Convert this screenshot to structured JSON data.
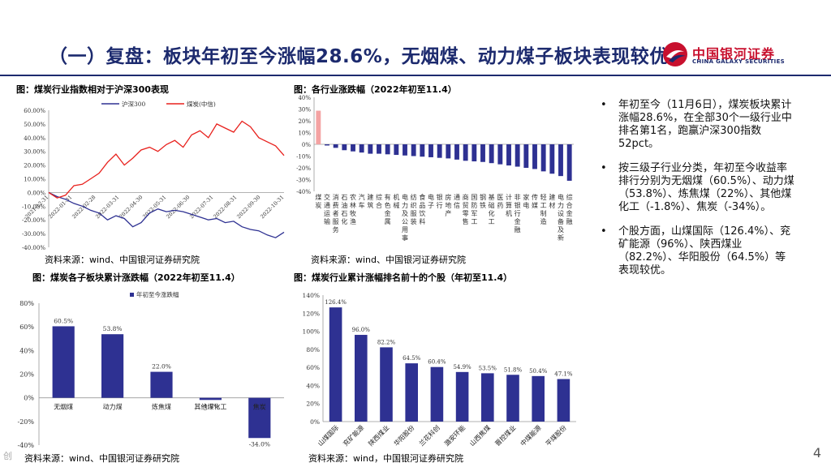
{
  "slide": {
    "title": "（一）复盘：板块年初至今涨幅28.6%，无烟煤、动力煤子板块表现较优",
    "page_number": "4",
    "footer_mark": "创"
  },
  "logo": {
    "cn": "中国银河证券",
    "en": "CHINA GALAXY SECURITIES",
    "colors": {
      "red": "#c8102e",
      "navy": "#1c2a6e"
    }
  },
  "bullets": [
    "年初至今（11月6日），煤炭板块累计涨幅28.6%，在全部30个一级行业中排名第1名，跑赢沪深300指数52pct。",
    "按三级子行业分类，年初至今收益率排行分别为无烟煤（60.5%）、动力煤（53.8%）、炼焦煤（22%）、其他煤化工（-1.8%）、焦炭（-34%）。",
    "个股方面，山煤国际（126.4%）、兖矿能源（96%）、陕西煤业（82.2%）、华阳股份（64.5%）等表现较优。"
  ],
  "charts": {
    "c1": {
      "title": "图：煤炭行业指数相对于沪深300表现",
      "source": "资料来源：wind、中国银河证券研究院"
    },
    "c2": {
      "title": "图：各行业涨跌幅（2022年初至11.4）",
      "source": "资料来源：wind、中国银河证券研究院"
    },
    "c3": {
      "title": "图：煤炭各子板块累计涨跌幅（2022年初至11.4）",
      "source": "资料来源：wind、中国银河证券研究院"
    },
    "c4": {
      "title": "图：煤炭行业累计涨幅排名前十的个股（年初至11.4）",
      "source": "资料来源：wind，中国银河证券研究院"
    }
  },
  "chart_data": [
    {
      "type": "line",
      "y_ticks": [
        "60.00%",
        "50.00%",
        "40.00%",
        "30.00%",
        "20.00%",
        "10.00%",
        "0.00%",
        "-10.00%",
        "-20.00%",
        "-30.00%",
        "-40.00%"
      ],
      "ylim": [
        -40,
        60
      ],
      "x_ticks": [
        "2021-12-31",
        "2022-01-31",
        "2022-02-28",
        "2022-03-31",
        "2022-04-30",
        "2022-05-31",
        "2022-06-30",
        "2022-07-31",
        "2022-08-31",
        "2022-09-30",
        "2022-10-31"
      ],
      "series": [
        {
          "name": "沪深300",
          "color": "#2e3192",
          "values": [
            0,
            -3,
            -5,
            -8,
            -10,
            -13,
            -15,
            -20,
            -17,
            -19,
            -25,
            -22,
            -15,
            -12,
            -14,
            -13,
            -14,
            -16,
            -18,
            -20,
            -19,
            -22,
            -21,
            -25,
            -27,
            -28,
            -31,
            -33,
            -29
          ]
        },
        {
          "name": "煤炭(中信)",
          "color": "#e8211d",
          "values": [
            0,
            -4,
            -2,
            5,
            6,
            10,
            14,
            22,
            28,
            20,
            25,
            31,
            33,
            30,
            35,
            38,
            33,
            42,
            45,
            40,
            50,
            47,
            44,
            52,
            48,
            40,
            37,
            34,
            27
          ]
        }
      ]
    },
    {
      "type": "bar",
      "y_ticks": [
        "40%",
        "30%",
        "20%",
        "10%",
        "0%",
        "-10%",
        "-20%",
        "-30%",
        "-40%"
      ],
      "ylim": [
        -40,
        40
      ],
      "categories": [
        "煤炭",
        "交通运输",
        "消费者服务",
        "石油石化",
        "农林牧渔",
        "汽车",
        "建筑",
        "综合",
        "有色金属",
        "机械",
        "电力及公用事业",
        "纺织服装",
        "食品饮料",
        "电子",
        "银行",
        "房地产",
        "通信",
        "商贸零售",
        "国防军工",
        "钢铁",
        "基础化工",
        "医药",
        "计算机",
        "非银行金融",
        "家电",
        "传媒",
        "轻工制造",
        "建材",
        "电力设备及新能源",
        "综合金融"
      ],
      "values": [
        28.6,
        -1,
        -3,
        -5,
        -6,
        -7,
        -8,
        -8,
        -8.5,
        -9,
        -9.5,
        -10,
        -10.5,
        -11,
        -11.5,
        -12,
        -13,
        -14,
        -14.5,
        -15,
        -16,
        -17,
        -18,
        -19,
        -20,
        -21,
        -23,
        -25,
        -27,
        -31
      ]
    },
    {
      "type": "bar",
      "legend": "年初至今涨跌幅",
      "y_ticks": [
        "80%",
        "60%",
        "40%",
        "20%",
        "0%",
        "-20%",
        "-40%"
      ],
      "ylim": [
        -40,
        80
      ],
      "categories": [
        "无烟煤",
        "动力煤",
        "炼焦煤",
        "其他煤化工",
        "焦炭"
      ],
      "values": [
        60.5,
        53.8,
        22.0,
        -1.8,
        -34.0
      ],
      "labels": [
        "60.5%",
        "53.8%",
        "22.0%",
        "-1.8%",
        "-34.0%"
      ]
    },
    {
      "type": "bar",
      "y_ticks": [
        "140%",
        "120%",
        "100%",
        "80%",
        "60%",
        "40%",
        "20%",
        "0%"
      ],
      "ylim": [
        0,
        140
      ],
      "categories": [
        "山煤国际",
        "兖矿能源",
        "陕西煤业",
        "华阳股份",
        "兰花科创",
        "潞安环能",
        "山西焦煤",
        "晋控煤业",
        "中煤能源",
        "平煤股份"
      ],
      "values": [
        126.4,
        96.0,
        82.2,
        64.5,
        60.4,
        54.9,
        53.5,
        51.8,
        50.4,
        47.1
      ],
      "labels": [
        "126.4%",
        "96.0%",
        "82.2%",
        "64.5%",
        "60.4%",
        "54.9%",
        "53.5%",
        "51.8%",
        "50.4%",
        "47.1%"
      ]
    }
  ]
}
